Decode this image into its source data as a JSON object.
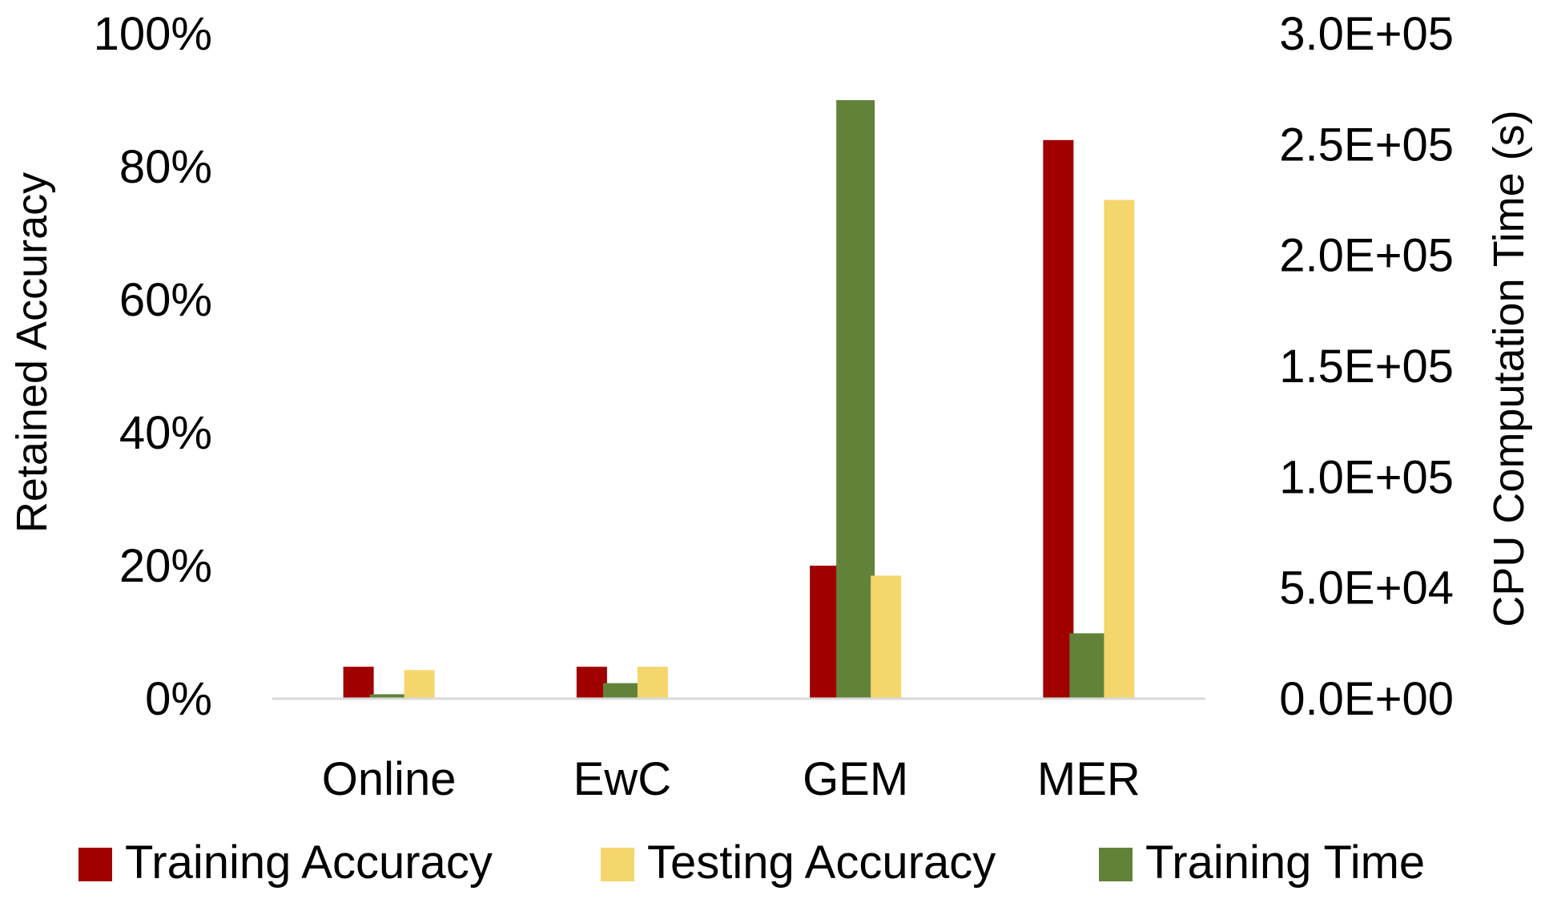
{
  "chart_data": {
    "type": "bar",
    "categories": [
      "Online",
      "EwC",
      "GEM",
      "MER"
    ],
    "series": [
      {
        "name": "Training Accuracy",
        "axis": "left",
        "color": "#A00000",
        "values": [
          0.048,
          0.048,
          0.2,
          0.84
        ]
      },
      {
        "name": "Testing Accuracy",
        "axis": "left",
        "color": "#F4D66C",
        "values": [
          0.043,
          0.048,
          0.185,
          0.75
        ]
      },
      {
        "name": "Training Time",
        "axis": "right",
        "color": "#62823A",
        "values": [
          2000,
          7000,
          270000,
          29500
        ]
      }
    ],
    "y_left": {
      "label": "Retained Accuracy",
      "ylim": [
        0,
        1
      ],
      "ticks": [
        0,
        0.2,
        0.4,
        0.6,
        0.8,
        1.0
      ],
      "tick_labels": [
        "0%",
        "20%",
        "40%",
        "60%",
        "80%",
        "100%"
      ]
    },
    "y_right": {
      "label": "CPU Computation Time (s)",
      "ylim": [
        0,
        300000
      ],
      "ticks": [
        0,
        50000,
        100000,
        150000,
        200000,
        250000,
        300000
      ],
      "tick_labels": [
        "0.0E+00",
        "5.0E+04",
        "1.0E+05",
        "1.5E+05",
        "2.0E+05",
        "2.5E+05",
        "3.0E+05"
      ]
    },
    "xlabel": "",
    "grid": false,
    "legend_position": "bottom"
  }
}
